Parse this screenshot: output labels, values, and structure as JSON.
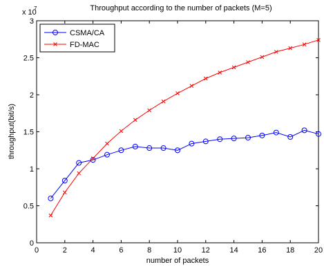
{
  "chart_data": {
    "type": "line",
    "title": "Throughput according to the number of packets (M=5)",
    "xlabel": "number of packets",
    "ylabel": "throughput(bit/s)",
    "y_exponent_label": "x 10",
    "y_exponent_power": "7",
    "xlim": [
      0,
      20
    ],
    "ylim": [
      0,
      3
    ],
    "x_ticks": [
      0,
      2,
      4,
      6,
      8,
      10,
      12,
      14,
      16,
      18,
      20
    ],
    "x_tick_labels": [
      "0",
      "2",
      "4",
      "6",
      "8",
      "10",
      "12",
      "14",
      "16",
      "18",
      "20"
    ],
    "y_ticks": [
      0,
      0.5,
      1,
      1.5,
      2,
      2.5,
      3
    ],
    "y_tick_labels": [
      "0",
      "0.5",
      "1",
      "1.5",
      "2",
      "2.5",
      "3"
    ],
    "grid": false,
    "legend_position": "top-left",
    "x": [
      1,
      2,
      3,
      4,
      5,
      6,
      7,
      8,
      9,
      10,
      11,
      12,
      13,
      14,
      15,
      16,
      17,
      18,
      19,
      20
    ],
    "series": [
      {
        "name": "CSMA/CA",
        "color": "#0000ff",
        "marker": "circle",
        "values": [
          0.6,
          0.84,
          1.08,
          1.12,
          1.19,
          1.25,
          1.3,
          1.28,
          1.28,
          1.25,
          1.34,
          1.37,
          1.4,
          1.41,
          1.42,
          1.45,
          1.49,
          1.43,
          1.52,
          1.47
        ]
      },
      {
        "name": "FD-MAC",
        "color": "#ff0000",
        "marker": "x",
        "values": [
          0.37,
          0.68,
          0.94,
          1.14,
          1.34,
          1.51,
          1.66,
          1.79,
          1.91,
          2.02,
          2.12,
          2.22,
          2.3,
          2.37,
          2.44,
          2.51,
          2.58,
          2.63,
          2.68,
          2.74
        ]
      }
    ]
  }
}
